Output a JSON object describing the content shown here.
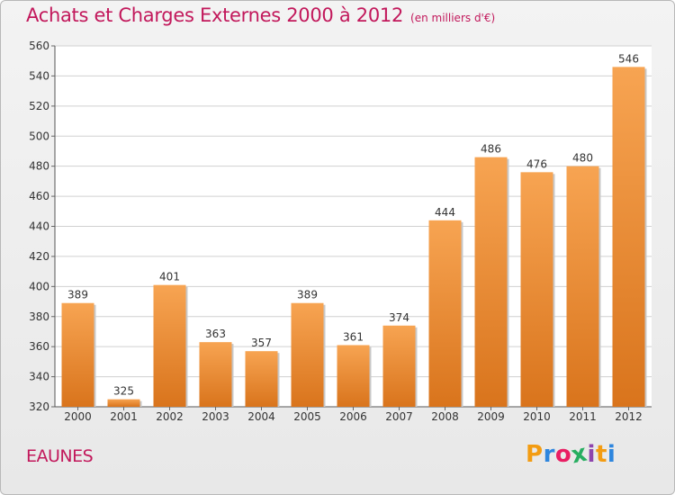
{
  "header": {
    "title": "Achats et Charges Externes 2000 à 2012",
    "unit": "(en milliers d'€)"
  },
  "footer": {
    "place": "EAUNES",
    "logo_letters": [
      "P",
      "r",
      "o",
      "x",
      "i",
      "t",
      "i"
    ],
    "logo_colors": [
      "#f39c12",
      "#2e86de",
      "#e91e63",
      "#27ae60",
      "#8e44ad",
      "#f39c12",
      "#2e86de"
    ]
  },
  "colors": {
    "bar_top": "#f7a452",
    "bar_bottom": "#d9741c",
    "title": "#c2185b",
    "grid": "#d0d0d0"
  },
  "chart_data": {
    "type": "bar",
    "title": "Achats et Charges Externes 2000 à 2012",
    "subtitle": "(en milliers d'€)",
    "categories": [
      "2000",
      "2001",
      "2002",
      "2003",
      "2004",
      "2005",
      "2006",
      "2007",
      "2008",
      "2009",
      "2010",
      "2011",
      "2012"
    ],
    "values": [
      389,
      325,
      401,
      363,
      357,
      389,
      361,
      374,
      444,
      486,
      476,
      480,
      546
    ],
    "ylim": [
      320,
      560
    ],
    "yticks": [
      320,
      340,
      360,
      380,
      400,
      420,
      440,
      460,
      480,
      500,
      520,
      540,
      560
    ],
    "grid": true,
    "xlabel": "",
    "ylabel": ""
  }
}
